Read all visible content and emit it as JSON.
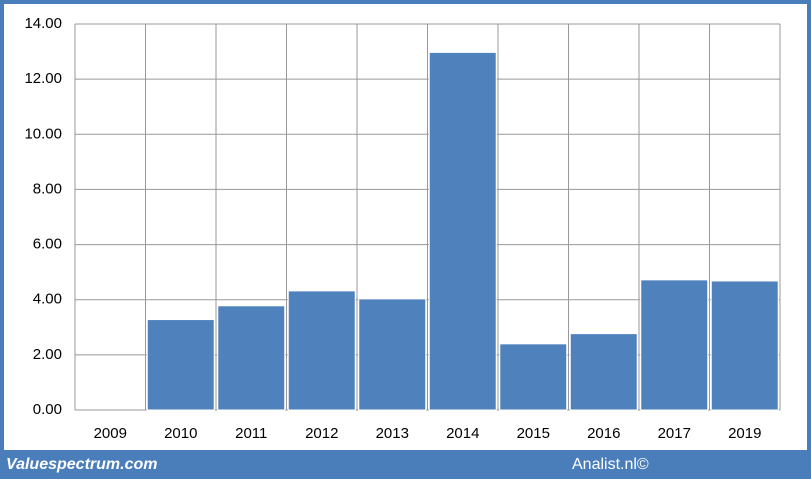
{
  "chart_data": {
    "type": "bar",
    "categories": [
      "2009",
      "2010",
      "2011",
      "2012",
      "2013",
      "2014",
      "2015",
      "2016",
      "2017",
      "2019"
    ],
    "values": [
      0,
      3.28,
      3.78,
      4.32,
      4.03,
      12.97,
      2.4,
      2.77,
      4.72,
      4.68
    ],
    "color": "#4f81bd",
    "ylim": [
      0,
      14
    ],
    "yticks": [
      {
        "value": 0,
        "label": "0.00"
      },
      {
        "value": 2,
        "label": "2.00"
      },
      {
        "value": 4,
        "label": "4.00"
      },
      {
        "value": 6,
        "label": "6.00"
      },
      {
        "value": 8,
        "label": "8.00"
      },
      {
        "value": 10,
        "label": "10.00"
      },
      {
        "value": 12,
        "label": "12.00"
      },
      {
        "value": 14,
        "label": "14.00"
      }
    ],
    "grid": true
  },
  "footer": {
    "left": "Valuespectrum.com",
    "right": "Analist.nl©"
  }
}
